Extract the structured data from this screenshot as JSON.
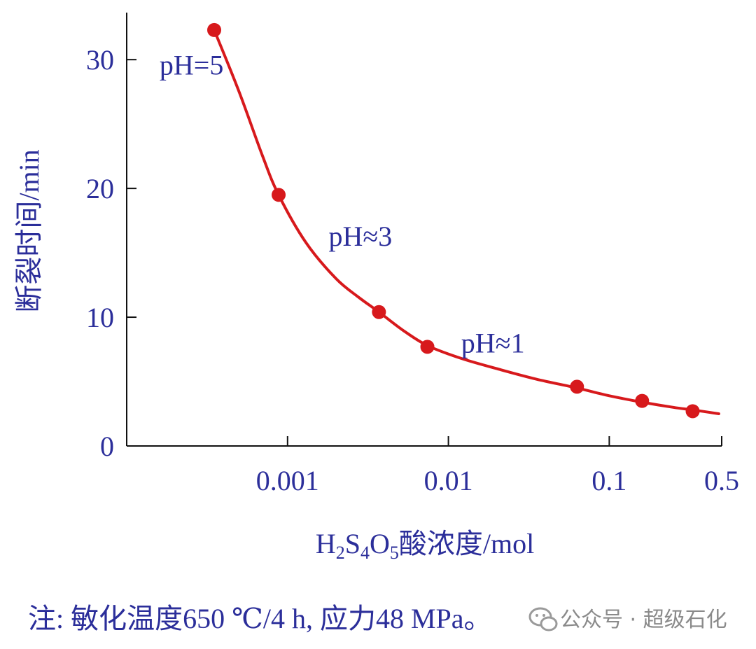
{
  "chart_data": {
    "type": "scatter",
    "title": "",
    "xlabel": {
      "formula_parts": [
        "H",
        "2",
        "S",
        "4",
        "O",
        "5"
      ],
      "suffix": "酸浓度/mol"
    },
    "ylabel": "断裂时间/min",
    "x_scale": "log",
    "xlim": [
      0.0001,
      0.5
    ],
    "ylim": [
      0,
      33
    ],
    "x_ticks": [
      {
        "value": 0.001,
        "label": "0.001"
      },
      {
        "value": 0.01,
        "label": "0.01"
      },
      {
        "value": 0.1,
        "label": "0.1"
      },
      {
        "value": 0.5,
        "label": "0.5"
      }
    ],
    "y_ticks": [
      {
        "value": 0,
        "label": "0"
      },
      {
        "value": 10,
        "label": "10"
      },
      {
        "value": 20,
        "label": "20"
      },
      {
        "value": 30,
        "label": "30"
      }
    ],
    "points": [
      {
        "x": 0.00035,
        "y": 32.3
      },
      {
        "x": 0.00088,
        "y": 19.5
      },
      {
        "x": 0.0037,
        "y": 10.4
      },
      {
        "x": 0.0074,
        "y": 7.7
      },
      {
        "x": 0.063,
        "y": 4.6
      },
      {
        "x": 0.16,
        "y": 3.5
      },
      {
        "x": 0.33,
        "y": 2.7
      }
    ],
    "curve": [
      {
        "x": 0.00035,
        "y": 32.3
      },
      {
        "x": 0.0005,
        "y": 27.5
      },
      {
        "x": 0.0007,
        "y": 22.5
      },
      {
        "x": 0.00088,
        "y": 19.5
      },
      {
        "x": 0.0013,
        "y": 15.8
      },
      {
        "x": 0.002,
        "y": 13.0
      },
      {
        "x": 0.0028,
        "y": 11.5
      },
      {
        "x": 0.0037,
        "y": 10.4
      },
      {
        "x": 0.0052,
        "y": 9.0
      },
      {
        "x": 0.0074,
        "y": 7.8
      },
      {
        "x": 0.012,
        "y": 6.8
      },
      {
        "x": 0.02,
        "y": 6.0
      },
      {
        "x": 0.035,
        "y": 5.2
      },
      {
        "x": 0.063,
        "y": 4.5
      },
      {
        "x": 0.1,
        "y": 3.9
      },
      {
        "x": 0.16,
        "y": 3.4
      },
      {
        "x": 0.25,
        "y": 3.0
      },
      {
        "x": 0.33,
        "y": 2.8
      },
      {
        "x": 0.48,
        "y": 2.5
      }
    ],
    "annotations": [
      {
        "text": "pH=5",
        "x": 0.00016,
        "y": 29.5
      },
      {
        "text": "pH≈3",
        "x": 0.0018,
        "y": 16.2
      },
      {
        "text": "pH≈1",
        "x": 0.012,
        "y": 7.9
      }
    ],
    "series_color": "#d7191c",
    "axis_color": "#111111",
    "text_color": "#2b2e9a",
    "grid": false
  },
  "note": "注: 敏化温度650 ℃/4 h, 应力48 MPa。",
  "watermark": {
    "icon": "wechat-icon",
    "text": "公众号 · 超级石化"
  }
}
